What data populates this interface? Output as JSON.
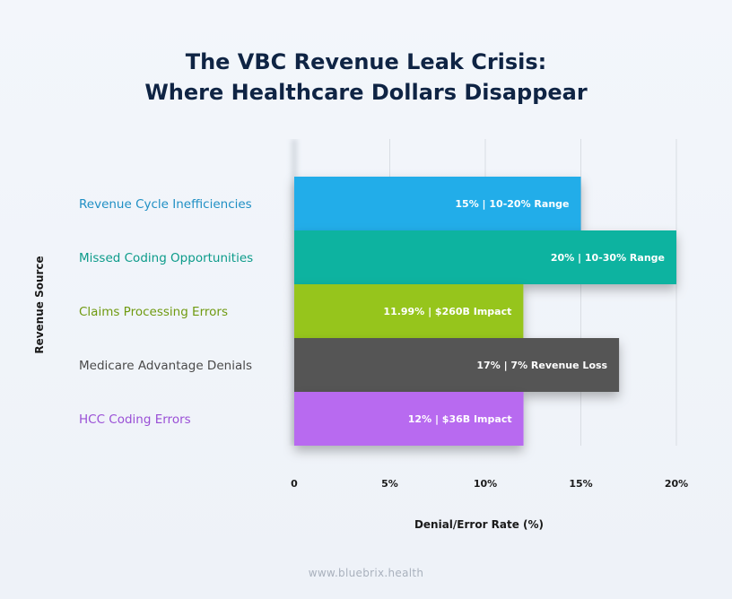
{
  "title_line1": "The VBC Revenue Leak Crisis:",
  "title_line2": "Where Healthcare Dollars Disappear",
  "footer": "www.bluebrix.health",
  "chart_data": {
    "type": "bar",
    "orientation": "horizontal",
    "xlabel": "Denial/Error Rate (%)",
    "ylabel": "Revenue Source",
    "xlim": [
      0,
      20
    ],
    "xticks": [
      "0",
      "5%",
      "10%",
      "15%",
      "20%"
    ],
    "grid": "vertical",
    "categories": [
      "Revenue Cycle Inefficiencies",
      "Missed Coding Opportunities",
      "Claims Processing Errors",
      "Medicare Advantage Denials",
      "HCC Coding Errors"
    ],
    "values": [
      15,
      20,
      11.99,
      17,
      12
    ],
    "data_labels": [
      "15% | 10-20% Range",
      "20% | 10-30% Range",
      "11.99% | $260B Impact",
      "17% | 7% Revenue Loss",
      "12% | $36B Impact"
    ],
    "colors": [
      "#22ade9",
      "#0cb3a0",
      "#96c51b",
      "#555555",
      "#b86bf0"
    ],
    "label_colors": [
      "#1f8fc4",
      "#0c9b8a",
      "#6f9a10",
      "#4a4a4a",
      "#9a4fd6"
    ]
  }
}
